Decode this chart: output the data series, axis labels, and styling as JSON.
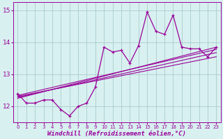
{
  "x": [
    0,
    1,
    2,
    3,
    4,
    5,
    6,
    7,
    8,
    9,
    10,
    11,
    12,
    13,
    14,
    15,
    16,
    17,
    18,
    19,
    20,
    21,
    22,
    23
  ],
  "y": [
    12.4,
    12.1,
    12.1,
    12.2,
    12.2,
    11.9,
    11.7,
    12.0,
    12.1,
    12.6,
    13.85,
    13.7,
    13.75,
    13.35,
    13.9,
    14.95,
    14.35,
    14.25,
    14.85,
    13.85,
    13.8,
    13.8,
    13.55,
    13.85
  ],
  "color": "#990099",
  "bg_color": "#d8f0f0",
  "grid_color": "#aacccc",
  "xlabel": "Windchill (Refroidissement éolien,°C)",
  "ylim": [
    11.5,
    15.25
  ],
  "xlim": [
    -0.5,
    23.5
  ],
  "yticks": [
    12,
    13,
    14,
    15
  ],
  "xticks": [
    0,
    1,
    2,
    3,
    4,
    5,
    6,
    7,
    8,
    9,
    10,
    11,
    12,
    13,
    14,
    15,
    16,
    17,
    18,
    19,
    20,
    21,
    22,
    23
  ],
  "reg_lines": [
    [
      12.25,
      13.85
    ],
    [
      12.28,
      13.68
    ],
    [
      12.31,
      13.55
    ],
    [
      12.34,
      13.78
    ]
  ],
  "line_width": 0.9,
  "marker": "+",
  "marker_size": 3.5
}
